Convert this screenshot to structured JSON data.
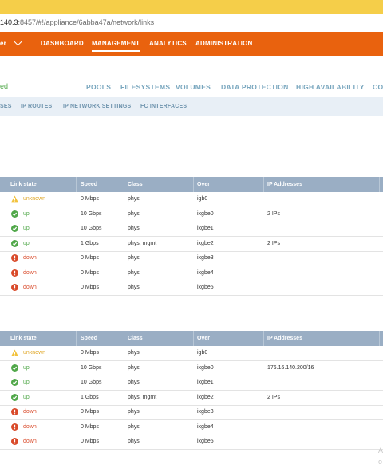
{
  "browser": {
    "url_host": "140.3",
    "url_rest": ":8457/#!/appliance/6abba47a/network/links"
  },
  "nav": {
    "user_menu_fragment": "er",
    "items": [
      {
        "label": "DASHBOARD"
      },
      {
        "label": "MANAGEMENT"
      },
      {
        "label": "ANALYTICS"
      },
      {
        "label": "ADMINISTRATION"
      }
    ],
    "active": "MANAGEMENT"
  },
  "status_fragment": "ed",
  "tabs": [
    {
      "label": "POOLS"
    },
    {
      "label": "FILESYSTEMS"
    },
    {
      "label": "VOLUMES"
    },
    {
      "label": "DATA PROTECTION"
    },
    {
      "label": "HIGH AVAILABILITY"
    },
    {
      "label": "CO"
    }
  ],
  "subtabs": [
    {
      "label": "SES"
    },
    {
      "label": "IP ROUTES"
    },
    {
      "label": "IP NETWORK SETTINGS"
    },
    {
      "label": "FC INTERFACES"
    }
  ],
  "columns": [
    "Link state",
    "Speed",
    "Class",
    "Over",
    "IP Addresses"
  ],
  "colors": {
    "up": "#51a84a",
    "down": "#d94a2a",
    "unknown": "#e0a82a",
    "nav": "#e9620e"
  },
  "tables": [
    {
      "rows": [
        {
          "state": "unknown",
          "speed": "0 Mbps",
          "class": "phys",
          "over": "igb0",
          "ip": ""
        },
        {
          "state": "up",
          "speed": "10 Gbps",
          "class": "phys",
          "over": "ixgbe0",
          "ip": "2 IPs"
        },
        {
          "state": "up",
          "speed": "10 Gbps",
          "class": "phys",
          "over": "ixgbe1",
          "ip": ""
        },
        {
          "state": "up",
          "speed": "1 Gbps",
          "class": "phys, mgmt",
          "over": "ixgbe2",
          "ip": "2 IPs"
        },
        {
          "state": "down",
          "speed": "0 Mbps",
          "class": "phys",
          "over": "ixgbe3",
          "ip": ""
        },
        {
          "state": "down",
          "speed": "0 Mbps",
          "class": "phys",
          "over": "ixgbe4",
          "ip": ""
        },
        {
          "state": "down",
          "speed": "0 Mbps",
          "class": "phys",
          "over": "ixgbe5",
          "ip": ""
        }
      ]
    },
    {
      "rows": [
        {
          "state": "unknown",
          "speed": "0 Mbps",
          "class": "phys",
          "over": "igb0",
          "ip": ""
        },
        {
          "state": "up",
          "speed": "10 Gbps",
          "class": "phys",
          "over": "ixgbe0",
          "ip": "176.16.140.200/16"
        },
        {
          "state": "up",
          "speed": "10 Gbps",
          "class": "phys",
          "over": "ixgbe1",
          "ip": ""
        },
        {
          "state": "up",
          "speed": "1 Gbps",
          "class": "phys, mgmt",
          "over": "ixgbe2",
          "ip": "2 IPs"
        },
        {
          "state": "down",
          "speed": "0 Mbps",
          "class": "phys",
          "over": "ixgbe3",
          "ip": ""
        },
        {
          "state": "down",
          "speed": "0 Mbps",
          "class": "phys",
          "over": "ixgbe4",
          "ip": ""
        },
        {
          "state": "down",
          "speed": "0 Mbps",
          "class": "phys",
          "over": "ixgbe5",
          "ip": ""
        }
      ]
    }
  ],
  "corner_fragments": [
    "A",
    "o"
  ]
}
